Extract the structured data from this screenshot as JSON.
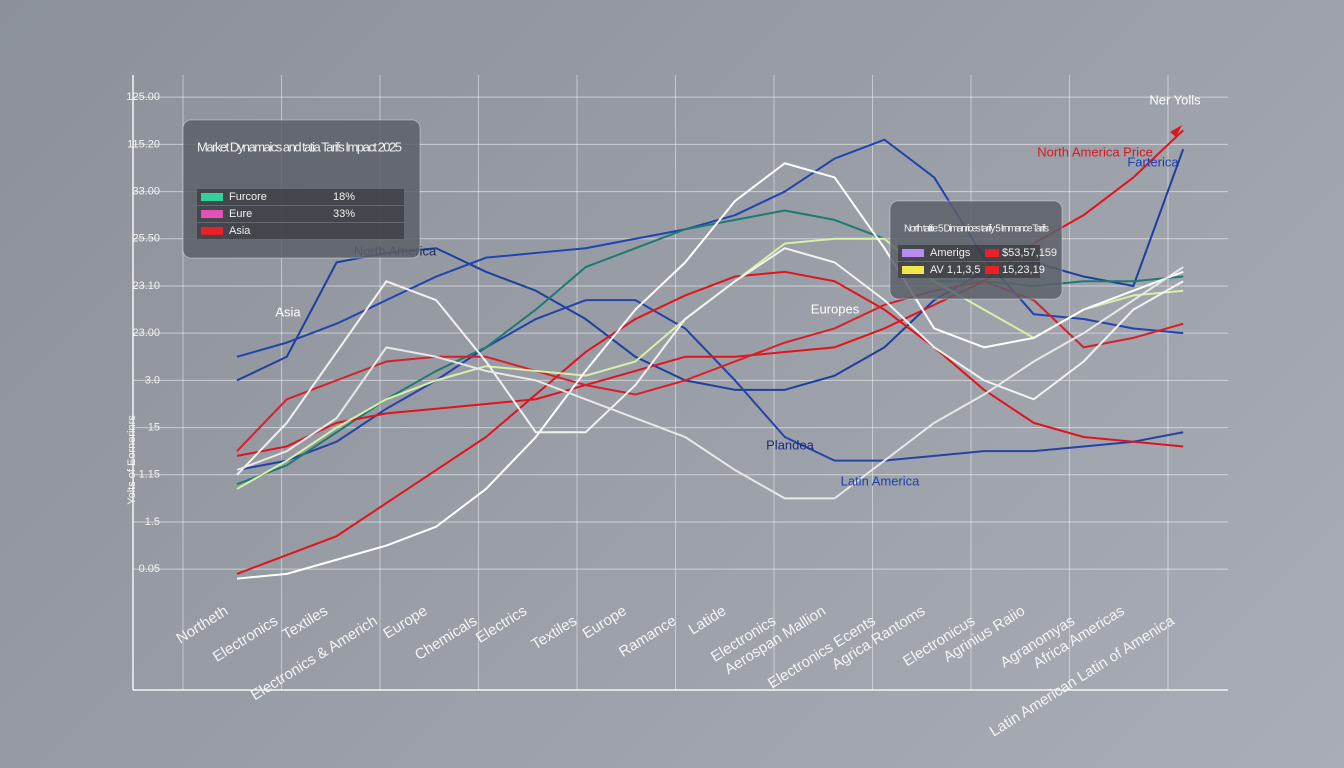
{
  "chart_data": {
    "type": "line",
    "y_label": "Yolts of Eornerinrs",
    "categories": [
      "Northeth",
      "Electronics",
      "Textiles",
      "Electronics & Americh",
      "Europe",
      "Chemicals",
      "Electrics",
      "Textiles",
      "Europe",
      "Ramance",
      "Latide",
      "Electronics",
      "Aerospan Mallion",
      "Electronics Ecents",
      "Agrica Rantoms",
      "Electronicus",
      "Agrinius Raiio",
      "Agranomyas",
      "Africa Americas",
      "Latin American Latin of Amenica"
    ],
    "ylim": [
      -2.56,
      10.47
    ],
    "yticks": [
      {
        "value": 0,
        "label": "0.05"
      },
      {
        "value": 1,
        "label": "1.5"
      },
      {
        "value": 2,
        "label": "1.15"
      },
      {
        "value": 3,
        "label": "15"
      },
      {
        "value": 4,
        "label": "3.0"
      },
      {
        "value": 5,
        "label": "23.00"
      },
      {
        "value": 6,
        "label": "23.10"
      },
      {
        "value": 7,
        "label": "25.50"
      },
      {
        "value": 8,
        "label": "33.00"
      },
      {
        "value": 9,
        "label": "115.20"
      },
      {
        "value": 10,
        "label": "125.00"
      }
    ],
    "grid": true,
    "series": [
      {
        "color": "#1c3fa0",
        "values": [
          4.0,
          4.5,
          6.5,
          6.7,
          6.8,
          6.3,
          5.9,
          5.3,
          4.5,
          4.0,
          3.8,
          3.8,
          4.1,
          4.7,
          5.7,
          6.3,
          6.5,
          6.2,
          6.0,
          8.9
        ]
      },
      {
        "color": "#1f45b0",
        "values": [
          4.5,
          4.8,
          5.2,
          5.7,
          6.2,
          6.6,
          6.7,
          6.8,
          7.0,
          7.2,
          7.5,
          8.0,
          8.7,
          9.1,
          8.3,
          6.6,
          5.4,
          5.3,
          5.1,
          5.0
        ]
      },
      {
        "color": "#2443a8",
        "values": [
          2.1,
          2.3,
          2.7,
          3.4,
          4.0,
          4.7,
          5.3,
          5.7,
          5.7,
          5.1,
          4.0,
          2.8,
          2.3,
          2.3,
          2.4,
          2.5,
          2.5,
          2.6,
          2.7,
          2.9
        ]
      },
      {
        "color": "#1f7a73",
        "values": [
          1.8,
          2.2,
          2.9,
          3.6,
          4.2,
          4.7,
          5.5,
          6.4,
          6.8,
          7.2,
          7.4,
          7.6,
          7.4,
          7.0,
          6.1,
          6.1,
          6.0,
          6.1,
          6.1,
          6.2
        ]
      },
      {
        "color": "#e0141e",
        "values": [
          -0.1,
          0.3,
          0.7,
          1.4,
          2.1,
          2.8,
          3.7,
          4.6,
          5.3,
          5.8,
          6.2,
          6.3,
          6.1,
          5.5,
          4.7,
          3.8,
          3.1,
          2.8,
          2.7,
          2.6
        ]
      },
      {
        "color": "#e3121c",
        "values": [
          2.4,
          2.6,
          3.1,
          3.3,
          3.4,
          3.5,
          3.6,
          3.9,
          4.2,
          4.5,
          4.5,
          4.6,
          4.7,
          5.1,
          5.6,
          6.1,
          6.9,
          7.5,
          8.3,
          9.3
        ]
      },
      {
        "color": "#d8202a",
        "values": [
          2.5,
          3.6,
          4.0,
          4.4,
          4.5,
          4.5,
          4.2,
          3.9,
          3.7,
          4.0,
          4.4,
          4.8,
          5.1,
          5.6,
          5.9,
          6.1,
          5.7,
          4.7,
          4.9,
          5.2
        ]
      },
      {
        "color": "#d7f0a8",
        "values": [
          1.7,
          2.3,
          3.0,
          3.6,
          4.0,
          4.3,
          4.2,
          4.1,
          4.4,
          5.3,
          6.1,
          6.9,
          7.0,
          7.0,
          6.1,
          5.5,
          4.9,
          5.5,
          5.8,
          5.9
        ]
      },
      {
        "color": "#ffffff",
        "values": [
          -0.2,
          -0.1,
          0.2,
          0.5,
          0.9,
          1.7,
          2.8,
          4.2,
          5.5,
          6.5,
          7.8,
          8.6,
          8.3,
          6.8,
          5.1,
          4.7,
          4.9,
          5.5,
          5.9,
          6.3
        ]
      },
      {
        "color": "#f2f2f2",
        "values": [
          2.0,
          3.1,
          4.6,
          6.1,
          5.7,
          4.4,
          2.9,
          2.9,
          3.9,
          5.3,
          6.1,
          6.8,
          6.5,
          5.7,
          4.7,
          4.0,
          3.6,
          4.4,
          5.5,
          6.1
        ]
      },
      {
        "color": "#e8e8e8",
        "values": [
          2.1,
          2.5,
          3.2,
          4.7,
          4.5,
          4.2,
          4.0,
          3.6,
          3.2,
          2.8,
          2.1,
          1.5,
          1.5,
          2.3,
          3.1,
          3.7,
          4.4,
          5.0,
          5.7,
          6.4
        ]
      }
    ],
    "legends": [
      {
        "title": "Market Dynamaics and tatia Tarifs Impact 2025",
        "items": [
          {
            "label": "Furcore",
            "value": "18%",
            "color": "#2fd39a"
          },
          {
            "label": "Eure",
            "value": "33%",
            "color": "#e64fb6"
          },
          {
            "label": "Asia",
            "color": "#e8202a"
          }
        ]
      },
      {
        "title": "North tatitie 5 Dimanrices tarify 5 Irnmance Tarifs",
        "items": [
          {
            "label": "Amerigs",
            "value": "$53,57,159",
            "color": "#b98cf2"
          },
          {
            "label": "AV 1,1,3,5",
            "value": "15,23,19",
            "color": "#f0e84a"
          }
        ]
      }
    ],
    "annotations": [
      {
        "text": "North America",
        "color": "#1b2a55"
      },
      {
        "text": "Asia",
        "color": "#ffffff"
      },
      {
        "text": "Europes",
        "color": "#ffffff"
      },
      {
        "text": "Plandea",
        "color": "#1a2f7a"
      },
      {
        "text": "Latin America",
        "color": "#1f3fb0"
      },
      {
        "text": "Ner Yolls",
        "color": "#ffffff"
      },
      {
        "text": "North America Price",
        "color": "#e0141e"
      },
      {
        "text": "Farterica",
        "color": "#1f3fb0"
      }
    ]
  }
}
